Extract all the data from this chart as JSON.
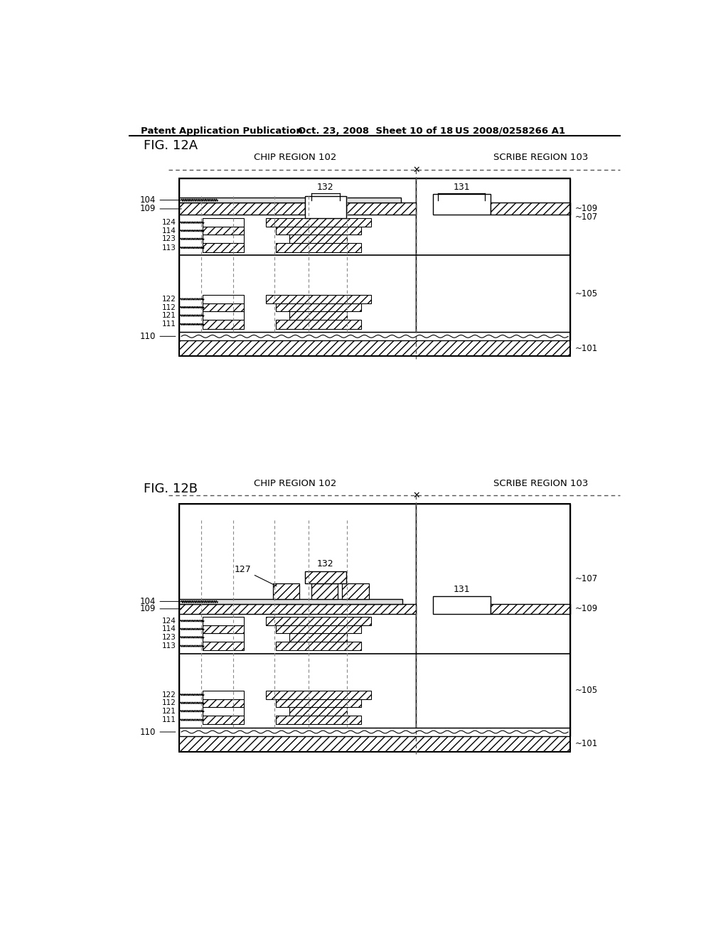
{
  "header_left": "Patent Application Publication",
  "header_mid": "Oct. 23, 2008  Sheet 10 of 18",
  "header_right": "US 2008/0258266 A1",
  "fig_a_label": "FIG. 12A",
  "fig_b_label": "FIG. 12B",
  "chip_region_label": "CHIP REGION 102",
  "scribe_region_label": "SCRIBE REGION 103",
  "background": "#ffffff",
  "hatch_color": "#000000",
  "line_color": "#000000"
}
